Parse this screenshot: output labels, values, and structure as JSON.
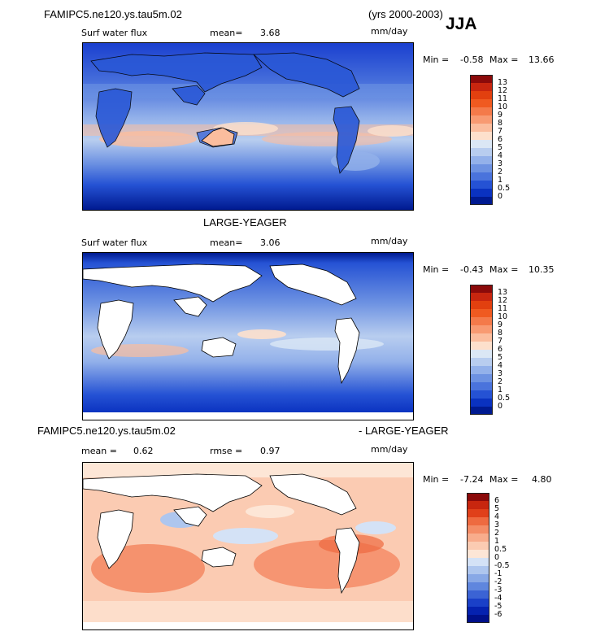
{
  "header": {
    "case_title": "FAMIPC5.ne120.ys.tau5m.02",
    "years": "(yrs 2000-2003)",
    "season": "JJA"
  },
  "panels": [
    {
      "id": "model",
      "variable": "Surf water flux",
      "stat_label": "mean=",
      "stat_value": "3.68",
      "units": "mm/day",
      "min_label": "Min =",
      "min_value": "-0.58",
      "max_label": "Max =",
      "max_value": "13.66",
      "land_masked": false,
      "colorbar_labels": [
        "13",
        "12",
        "11",
        "10",
        "9",
        "8",
        "7",
        "6",
        "5",
        "4",
        "3",
        "2",
        "1",
        "0.5",
        "0"
      ],
      "colorbar_colors": [
        "#8b0a0a",
        "#c8260f",
        "#e2400f",
        "#f05a20",
        "#f47a4a",
        "#f89a72",
        "#fbbd9e",
        "#fde0cc",
        "#dbe7f5",
        "#b8cdef",
        "#93b1ea",
        "#6d92e2",
        "#4a73dc",
        "#2552d4",
        "#0a32c0",
        "#001a90"
      ]
    },
    {
      "id": "obs",
      "heading": "LARGE-YEAGER",
      "variable": "Surf water flux",
      "stat_label": "mean=",
      "stat_value": "3.06",
      "units": "mm/day",
      "min_label": "Min =",
      "min_value": "-0.43",
      "max_label": "Max =",
      "max_value": "10.35",
      "land_masked": true,
      "colorbar_labels": [
        "13",
        "12",
        "11",
        "10",
        "9",
        "8",
        "7",
        "6",
        "5",
        "4",
        "3",
        "2",
        "1",
        "0.5",
        "0"
      ],
      "colorbar_colors": [
        "#8b0a0a",
        "#c8260f",
        "#e2400f",
        "#f05a20",
        "#f47a4a",
        "#f89a72",
        "#fbbd9e",
        "#fde0cc",
        "#dbe7f5",
        "#b8cdef",
        "#93b1ea",
        "#6d92e2",
        "#4a73dc",
        "#2552d4",
        "#0a32c0",
        "#001a90"
      ]
    },
    {
      "id": "diff",
      "heading_left": "FAMIPC5.ne120.ys.tau5m.02",
      "heading_right": "- LARGE-YEAGER",
      "stat_label": "mean =",
      "stat_value": "0.62",
      "stat2_label": "rmse =",
      "stat2_value": "0.97",
      "units": "mm/day",
      "min_label": "Min =",
      "min_value": "-7.24",
      "max_label": "Max =",
      "max_value": "4.80",
      "land_masked": true,
      "colorbar_labels": [
        "6",
        "5",
        "4",
        "3",
        "2",
        "1",
        "0.5",
        "0",
        "-0.5",
        "-1",
        "-2",
        "-3",
        "-4",
        "-5",
        "-6"
      ],
      "colorbar_colors": [
        "#8b0a0a",
        "#c8260f",
        "#e0401a",
        "#ee6a40",
        "#f48c66",
        "#f8ac8c",
        "#fbcbb2",
        "#fde6d6",
        "#d4e2f6",
        "#aec6ee",
        "#88a8e6",
        "#5f86de",
        "#3b63d4",
        "#1a40c8",
        "#0522b0",
        "#00108a"
      ]
    }
  ]
}
